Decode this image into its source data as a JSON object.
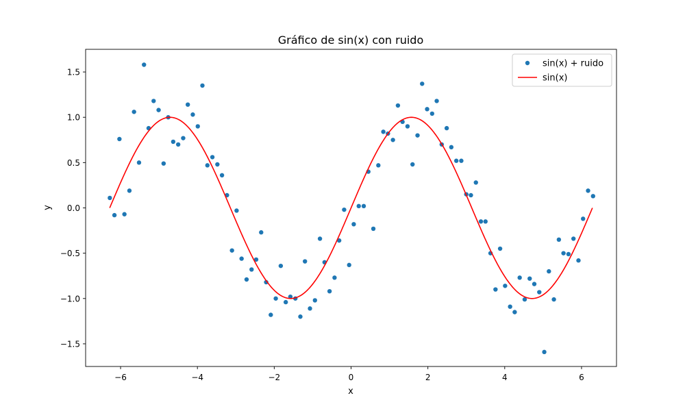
{
  "chart_data": {
    "type": "scatter",
    "title": "Gráfico de sin(x) con ruido",
    "xlabel": "x",
    "ylabel": "y",
    "xlim": [
      -6.91,
      6.91
    ],
    "ylim": [
      -1.75,
      1.75
    ],
    "xticks": [
      -6,
      -4,
      -2,
      0,
      2,
      4,
      6
    ],
    "xtick_labels": [
      "−6",
      "−4",
      "−2",
      "0",
      "2",
      "4",
      "6"
    ],
    "yticks": [
      -1.5,
      -1.0,
      -0.5,
      0.0,
      0.5,
      1.0,
      1.5
    ],
    "ytick_labels": [
      "−1.5",
      "−1.0",
      "−0.5",
      "0.0",
      "0.5",
      "1.0",
      "1.5"
    ],
    "legend_position": "upper right",
    "series": [
      {
        "name": "sin(x) + ruido",
        "kind": "scatter",
        "color": "#1f77b4",
        "x": [
          -6.28,
          -6.16,
          -6.03,
          -5.9,
          -5.77,
          -5.65,
          -5.52,
          -5.39,
          -5.27,
          -5.14,
          -5.01,
          -4.88,
          -4.76,
          -4.63,
          -4.5,
          -4.37,
          -4.25,
          -4.12,
          -3.99,
          -3.87,
          -3.74,
          -3.61,
          -3.48,
          -3.36,
          -3.23,
          -3.1,
          -2.98,
          -2.85,
          -2.72,
          -2.59,
          -2.47,
          -2.34,
          -2.21,
          -2.09,
          -1.96,
          -1.83,
          -1.7,
          -1.58,
          -1.45,
          -1.32,
          -1.2,
          -1.07,
          -0.94,
          -0.81,
          -0.69,
          -0.56,
          -0.43,
          -0.31,
          -0.18,
          -0.05,
          0.07,
          0.2,
          0.33,
          0.45,
          0.58,
          0.71,
          0.84,
          0.96,
          1.09,
          1.22,
          1.34,
          1.47,
          1.6,
          1.73,
          1.85,
          1.98,
          2.11,
          2.23,
          2.36,
          2.49,
          2.61,
          2.74,
          2.87,
          3.0,
          3.12,
          3.25,
          3.38,
          3.5,
          3.63,
          3.76,
          3.88,
          4.01,
          4.14,
          4.26,
          4.39,
          4.52,
          4.65,
          4.77,
          4.9,
          5.03,
          5.15,
          5.28,
          5.41,
          5.53,
          5.66,
          5.79,
          5.92,
          6.04,
          6.17,
          6.3
        ],
        "y": [
          0.11,
          -0.08,
          0.76,
          -0.07,
          0.19,
          1.06,
          0.5,
          1.58,
          0.88,
          1.18,
          1.08,
          0.49,
          1.0,
          0.73,
          0.7,
          0.77,
          1.14,
          1.03,
          0.9,
          1.35,
          0.47,
          0.56,
          0.48,
          0.36,
          0.14,
          -0.47,
          -0.03,
          -0.56,
          -0.79,
          -0.68,
          -0.57,
          -0.27,
          -0.82,
          -1.18,
          -1.0,
          -0.64,
          -1.04,
          -0.98,
          -1.0,
          -1.2,
          -0.59,
          -1.11,
          -1.02,
          -0.34,
          -0.6,
          -0.92,
          -0.77,
          -0.36,
          -0.02,
          -0.63,
          -0.18,
          0.02,
          0.02,
          0.4,
          -0.23,
          0.47,
          0.84,
          0.82,
          0.75,
          1.13,
          0.95,
          0.9,
          0.48,
          0.8,
          1.37,
          1.09,
          1.04,
          1.18,
          0.7,
          0.88,
          0.67,
          0.52,
          0.52,
          0.15,
          0.14,
          0.28,
          -0.15,
          -0.15,
          -0.5,
          -0.9,
          -0.45,
          -0.86,
          -1.09,
          -1.15,
          -0.77,
          -1.01,
          -0.78,
          -0.84,
          -0.93,
          -1.59,
          -0.7,
          -1.01,
          -0.35,
          -0.5,
          -0.51,
          -0.34,
          -0.58,
          -0.12,
          0.19,
          0.13
        ]
      },
      {
        "name": "sin(x)",
        "kind": "line",
        "color": "#ff0000",
        "function": "sin",
        "x_range": [
          -6.2832,
          6.2832
        ]
      }
    ]
  }
}
